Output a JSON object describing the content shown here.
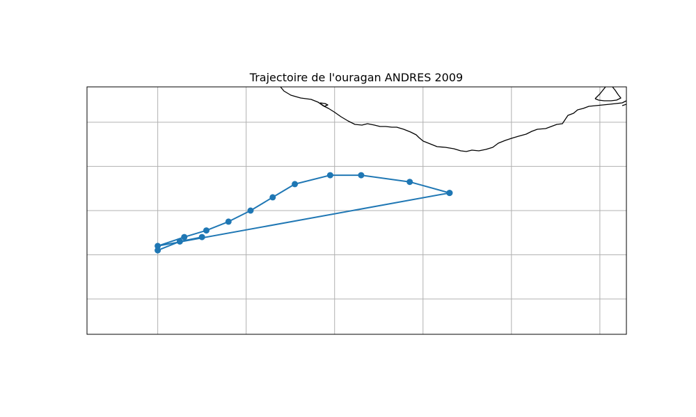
{
  "figure": {
    "title": "Trajectoire de l'ouragan ANDRES 2009"
  },
  "chart_data": {
    "type": "line",
    "title": "Trajectoire de l'ouragan ANDRES 2009",
    "projection": "PlateCarree",
    "xlabel": "",
    "ylabel": "",
    "xlim": [
      -110.8,
      -98.6
    ],
    "ylim": [
      13.6,
      19.2
    ],
    "grid": true,
    "gridlines_lon": [
      -109.2,
      -107.2,
      -105.2,
      -103.2,
      -101.2,
      -99.2
    ],
    "gridlines_lat": [
      14.4,
      15.4,
      16.4,
      17.4,
      18.4
    ],
    "coastline_color": "#000000",
    "series": [
      {
        "color": "#1f77b4",
        "marker": "circle",
        "x": [
          -102.6,
          -103.5,
          -104.6,
          -105.3,
          -106.1,
          -106.6,
          -107.1,
          -107.6,
          -108.1,
          -108.6,
          -109.2,
          -102.6
        ],
        "y": [
          16.8,
          17.05,
          17.2,
          17.2,
          17.0,
          16.7,
          16.4,
          16.15,
          15.95,
          15.8,
          15.6,
          16.8
        ]
      },
      {
        "color": "#1f77b4",
        "marker": "circle",
        "x": [
          -108.2,
          -108.7,
          -109.2
        ],
        "y": [
          15.8,
          15.7,
          15.5
        ]
      }
    ]
  }
}
